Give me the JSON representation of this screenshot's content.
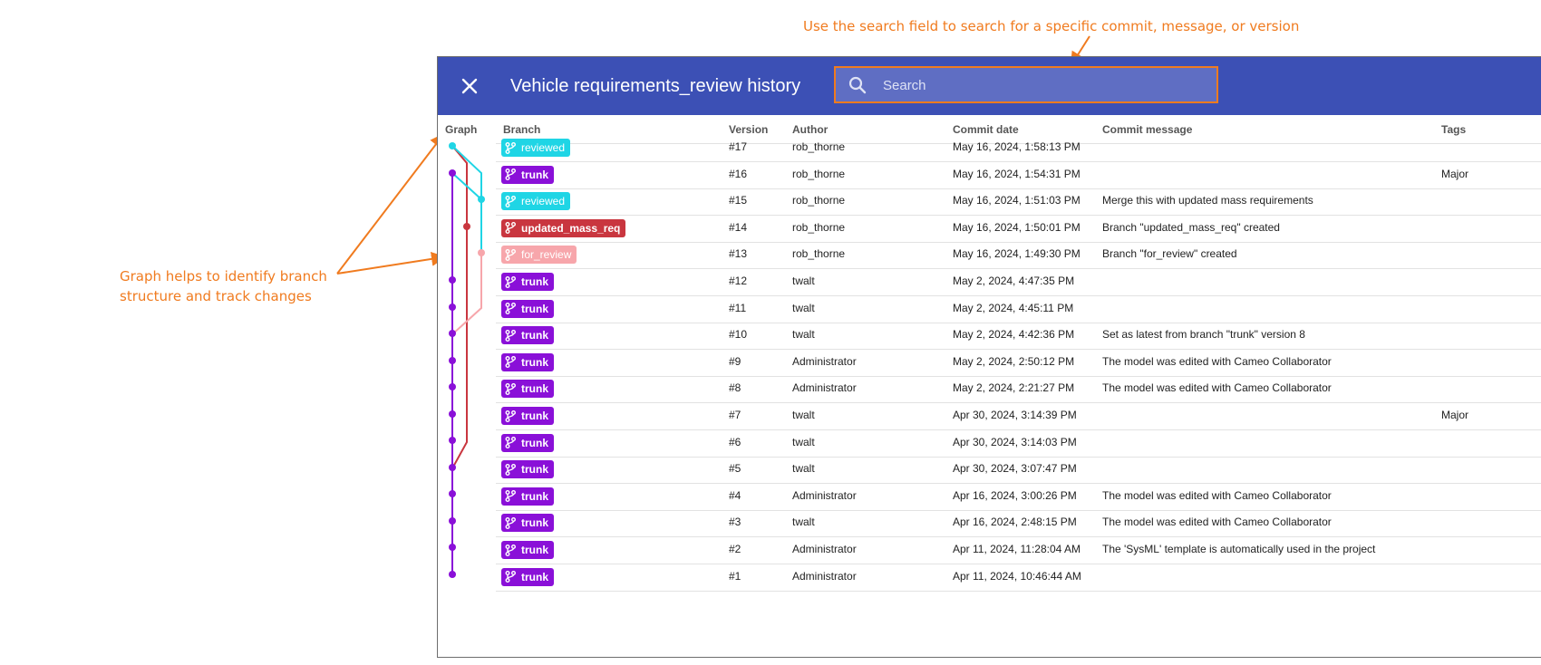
{
  "annotations": {
    "search_note": "Use the search field to search for a specific commit, message, or version",
    "graph_note": "Graph helps to identify branch structure and track changes",
    "color": "#f07b1f"
  },
  "dialog": {
    "title": "Vehicle requirements_review history",
    "close_icon": "close-icon",
    "header_color": "#3c50b5",
    "search": {
      "placeholder": "Search",
      "icon": "search-icon"
    }
  },
  "table": {
    "columns": {
      "graph": "Graph",
      "branch": "Branch",
      "version": "Version",
      "author": "Author",
      "date": "Commit date",
      "message": "Commit message",
      "tags": "Tags"
    },
    "branch_colors": {
      "reviewed": "#1fd5e5",
      "trunk": "#8a10d8",
      "updated_mass_req": "#c9363f",
      "for_review": "#f7a6ab"
    },
    "rows": [
      {
        "branch": "reviewed",
        "branch_type": "reviewed",
        "version": "#17",
        "author": "rob_thorne",
        "date": "May 16, 2024, 1:58:13 PM",
        "message": "",
        "tags": ""
      },
      {
        "branch": "trunk",
        "branch_type": "trunk",
        "version": "#16",
        "author": "rob_thorne",
        "date": "May 16, 2024, 1:54:31 PM",
        "message": "",
        "tags": "Major"
      },
      {
        "branch": "reviewed",
        "branch_type": "reviewed",
        "version": "#15",
        "author": "rob_thorne",
        "date": "May 16, 2024, 1:51:03 PM",
        "message": "Merge this with updated mass requirements",
        "tags": ""
      },
      {
        "branch": "updated_mass_req",
        "branch_type": "updated",
        "version": "#14",
        "author": "rob_thorne",
        "date": "May 16, 2024, 1:50:01 PM",
        "message": "Branch \"updated_mass_req\" created",
        "tags": ""
      },
      {
        "branch": "for_review",
        "branch_type": "forreview",
        "version": "#13",
        "author": "rob_thorne",
        "date": "May 16, 2024, 1:49:30 PM",
        "message": "Branch \"for_review\" created",
        "tags": ""
      },
      {
        "branch": "trunk",
        "branch_type": "trunk",
        "version": "#12",
        "author": "twalt",
        "date": "May 2, 2024, 4:47:35 PM",
        "message": "",
        "tags": ""
      },
      {
        "branch": "trunk",
        "branch_type": "trunk",
        "version": "#11",
        "author": "twalt",
        "date": "May 2, 2024, 4:45:11 PM",
        "message": "",
        "tags": ""
      },
      {
        "branch": "trunk",
        "branch_type": "trunk",
        "version": "#10",
        "author": "twalt",
        "date": "May 2, 2024, 4:42:36 PM",
        "message": "Set as latest from branch \"trunk\" version 8",
        "tags": ""
      },
      {
        "branch": "trunk",
        "branch_type": "trunk",
        "version": "#9",
        "author": "Administrator",
        "date": "May 2, 2024, 2:50:12 PM",
        "message": "The model was edited with Cameo Collaborator",
        "tags": ""
      },
      {
        "branch": "trunk",
        "branch_type": "trunk",
        "version": "#8",
        "author": "Administrator",
        "date": "May 2, 2024, 2:21:27 PM",
        "message": "The model was edited with Cameo Collaborator",
        "tags": ""
      },
      {
        "branch": "trunk",
        "branch_type": "trunk",
        "version": "#7",
        "author": "twalt",
        "date": "Apr 30, 2024, 3:14:39 PM",
        "message": "",
        "tags": "Major"
      },
      {
        "branch": "trunk",
        "branch_type": "trunk",
        "version": "#6",
        "author": "twalt",
        "date": "Apr 30, 2024, 3:14:03 PM",
        "message": "",
        "tags": ""
      },
      {
        "branch": "trunk",
        "branch_type": "trunk",
        "version": "#5",
        "author": "twalt",
        "date": "Apr 30, 2024, 3:07:47 PM",
        "message": "",
        "tags": ""
      },
      {
        "branch": "trunk",
        "branch_type": "trunk",
        "version": "#4",
        "author": "Administrator",
        "date": "Apr 16, 2024, 3:00:26 PM",
        "message": "The model was edited with Cameo Collaborator",
        "tags": ""
      },
      {
        "branch": "trunk",
        "branch_type": "trunk",
        "version": "#3",
        "author": "twalt",
        "date": "Apr 16, 2024, 2:48:15 PM",
        "message": "The model was edited with Cameo Collaborator",
        "tags": ""
      },
      {
        "branch": "trunk",
        "branch_type": "trunk",
        "version": "#2",
        "author": "Administrator",
        "date": "Apr 11, 2024, 11:28:04 AM",
        "message": "The 'SysML' template is automatically used in the project",
        "tags": ""
      },
      {
        "branch": "trunk",
        "branch_type": "trunk",
        "version": "#1",
        "author": "Administrator",
        "date": "Apr 11, 2024, 10:46:44 AM",
        "message": "",
        "tags": ""
      }
    ]
  }
}
